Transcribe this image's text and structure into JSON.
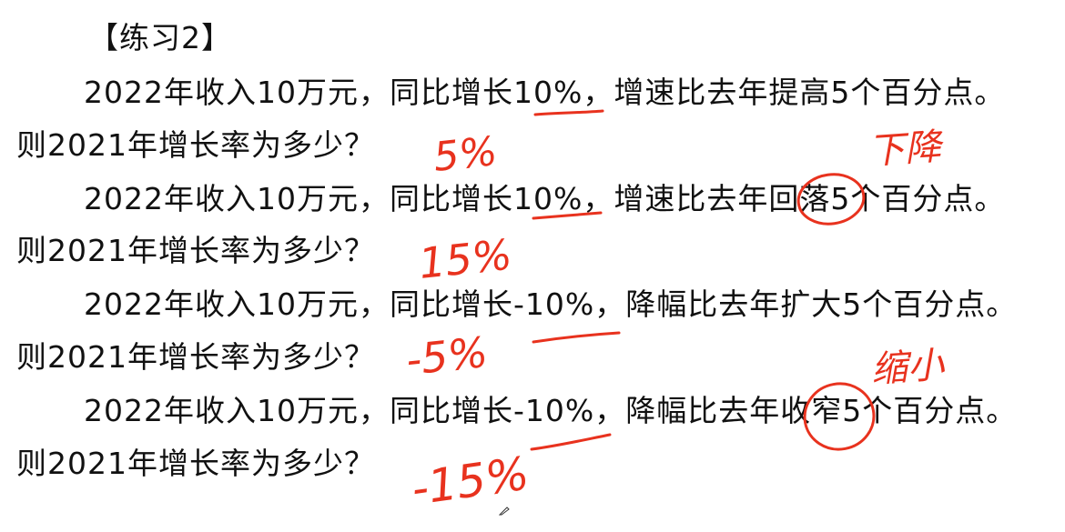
{
  "title": "【练习2】",
  "questions": [
    {
      "q": "2022年收入10万元，同比增长10%，增速比去年提高5个百分点。",
      "a": "则2021年增长率为多少？",
      "handwritten_answer": "5%"
    },
    {
      "q": "2022年收入10万元，同比增长10%，增速比去年回落5个百分点。",
      "a": "则2021年增长率为多少？",
      "handwritten_answer": "15%",
      "handwritten_note": "下降"
    },
    {
      "q": "2022年收入10万元，同比增长-10%，降幅比去年扩大5个百分点。",
      "a": "则2021年增长率为多少？",
      "handwritten_answer": "-5%"
    },
    {
      "q": "2022年收入10万元，同比增长-10%，降幅比去年收窄5个百分点。",
      "a": "则2021年增长率为多少？",
      "handwritten_answer": "-15%",
      "handwritten_note": "缩小"
    }
  ],
  "colors": {
    "text": "#111111",
    "annotation": "#e8321e",
    "background": "#ffffff"
  }
}
